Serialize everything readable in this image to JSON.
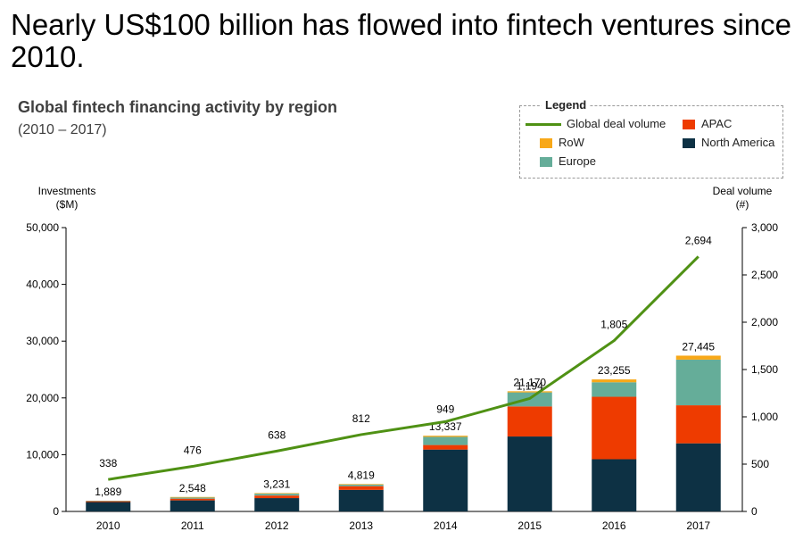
{
  "headline": "Nearly US$100 billion has flowed into fintech ventures since 2010.",
  "chart_data": {
    "type": "bar",
    "title": "Global fintech financing activity by region",
    "subtitle": "(2010 – 2017)",
    "left_axis_label": [
      "Investments",
      "($M)"
    ],
    "right_axis_label": [
      "Deal volume",
      "(#)"
    ],
    "categories": [
      "2010",
      "2011",
      "2012",
      "2013",
      "2014",
      "2015",
      "2016",
      "2017"
    ],
    "stacked": true,
    "ylim": [
      0,
      50000
    ],
    "yticks": [
      0,
      10000,
      20000,
      30000,
      40000,
      50000
    ],
    "ytick_labels": [
      "0",
      "10,000",
      "20,000",
      "30,000",
      "40,000",
      "50,000"
    ],
    "y2lim": [
      0,
      3000
    ],
    "y2ticks": [
      0,
      500,
      1000,
      1500,
      2000,
      2500,
      3000
    ],
    "y2tick_labels": [
      "0",
      "500",
      "1,000",
      "1,500",
      "2,000",
      "2,500",
      "3,000"
    ],
    "series": [
      {
        "name": "North America",
        "color": "#0d3144",
        "values": [
          1650,
          1950,
          2350,
          3800,
          10900,
          13200,
          9200,
          12000
        ]
      },
      {
        "name": "APAC",
        "color": "#ee3b00",
        "values": [
          150,
          300,
          450,
          650,
          800,
          5300,
          11000,
          6700
        ]
      },
      {
        "name": "Europe",
        "color": "#65ad99",
        "values": [
          79,
          200,
          331,
          269,
          1437,
          2470,
          2555,
          8045
        ]
      },
      {
        "name": "RoW",
        "color": "#f8a818",
        "values": [
          10,
          98,
          100,
          100,
          200,
          200,
          500,
          700
        ]
      }
    ],
    "totals": [
      1889,
      2548,
      3231,
      4819,
      13337,
      21170,
      23255,
      27445
    ],
    "total_labels": [
      "1,889",
      "2,548",
      "3,231",
      "4,819",
      "13,337",
      "21,170",
      "23,255",
      "27,445"
    ],
    "line_series": {
      "name": "Global deal volume",
      "color": "#4f9114",
      "axis": "right",
      "values": [
        338,
        476,
        638,
        812,
        949,
        1194,
        1805,
        2694
      ],
      "labels": [
        "338",
        "476",
        "638",
        "812",
        "949",
        "1,194",
        "1,805",
        "2,694"
      ]
    },
    "legend": {
      "title": "Legend",
      "position": "top-right",
      "items": [
        {
          "label": "Global deal volume",
          "kind": "line",
          "color": "#4f9114"
        },
        {
          "label": "APAC",
          "kind": "box",
          "color": "#ee3b00"
        },
        {
          "label": "RoW",
          "kind": "box",
          "color": "#f8a818"
        },
        {
          "label": "North America",
          "kind": "box",
          "color": "#0d3144"
        },
        {
          "label": "Europe",
          "kind": "box",
          "color": "#65ad99"
        }
      ]
    },
    "grid": false
  }
}
